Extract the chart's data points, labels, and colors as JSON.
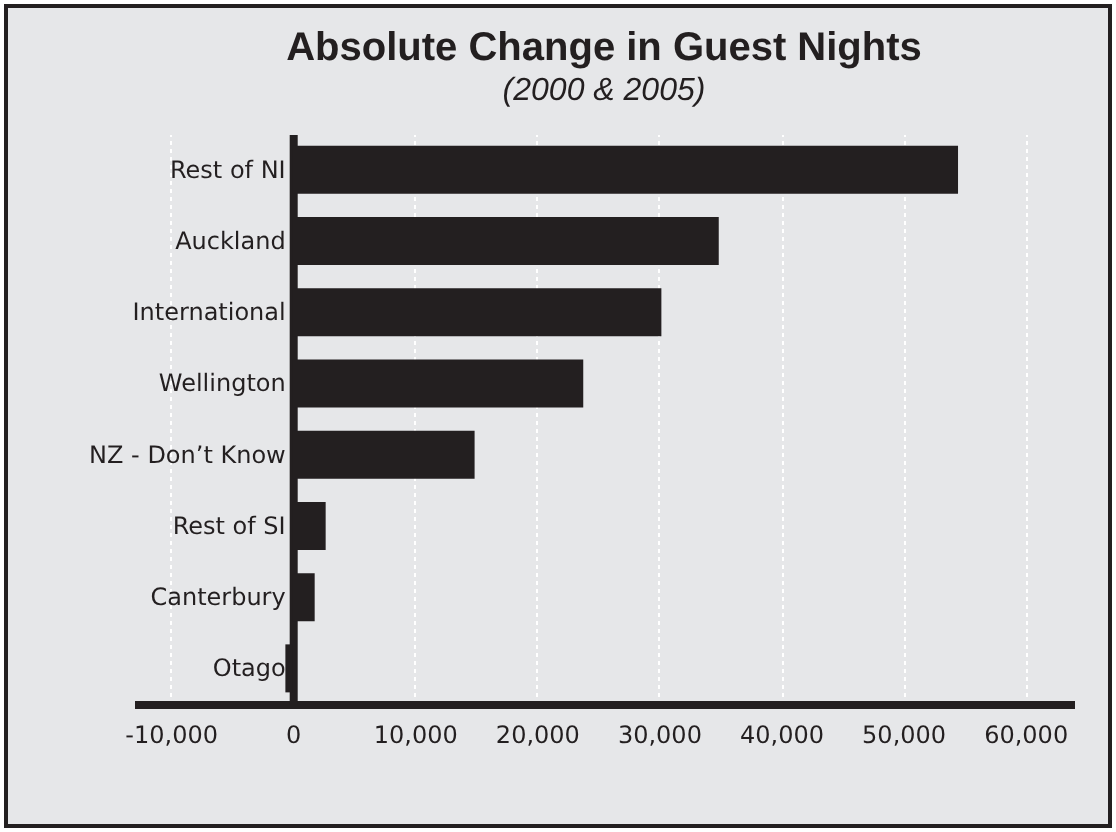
{
  "chart_data": {
    "type": "bar",
    "orientation": "horizontal",
    "title": "Absolute Change in Guest Nights",
    "subtitle": "(2000 & 2005)",
    "categories": [
      "Rest of NI",
      "Auckland",
      "International",
      "Wellington",
      "NZ - Don’t Know",
      "Rest of SI",
      "Canterbury",
      "Otago"
    ],
    "values": [
      54500,
      34900,
      30200,
      23800,
      14900,
      2700,
      1800,
      -600
    ],
    "color": "#231f20",
    "xlim": [
      -13000,
      64000
    ],
    "xticks": [
      {
        "value": -10000,
        "label": "-10,000"
      },
      0,
      {
        "value": 10000,
        "label": "10,000"
      },
      {
        "value": 20000,
        "label": "20,000"
      },
      {
        "value": 30000,
        "label": "30,000"
      },
      {
        "value": 40000,
        "label": "40,000"
      },
      {
        "value": 50000,
        "label": "50,000"
      },
      {
        "value": 60000,
        "label": "60,000"
      }
    ],
    "grid": "x"
  }
}
